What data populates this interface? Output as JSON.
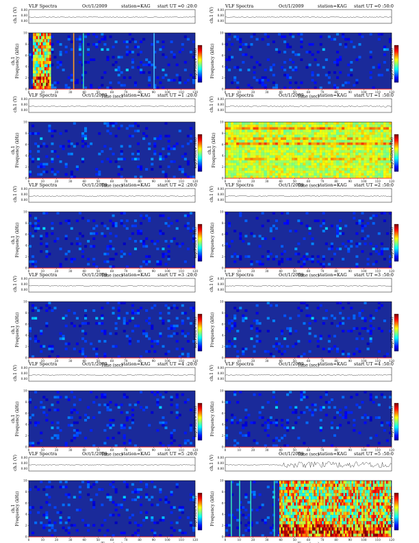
{
  "chart_data": [
    {
      "type": "heatmap",
      "title": "VLF Spectra",
      "date": "Oct/1/2009",
      "station": "station=KAG",
      "start": "start  UT  =0 :20:0",
      "ylabel_top": "ch.1 (V)",
      "ylabel_main": "ch.1\nFrequency  (kHz)",
      "xlabel": "Time  (sec)",
      "colorbar_label": "log(PSD)(V²/Hz)",
      "xlim": [
        0,
        120
      ],
      "ylim": [
        0,
        10
      ],
      "yticks_top": [
        "0.00",
        "0.00",
        "0.00"
      ],
      "xticks": [
        0,
        10,
        20,
        30,
        40,
        50,
        60,
        70,
        80,
        90,
        100,
        110,
        120
      ],
      "yticks": [
        0,
        2,
        4,
        6,
        8,
        10
      ],
      "level": "low",
      "events": [
        {
          "type": "broadband",
          "x_start": 3,
          "x_end": 16
        },
        {
          "type": "line",
          "x": 32
        },
        {
          "type": "line",
          "x": 39
        },
        {
          "type": "line",
          "x": 90
        }
      ]
    },
    {
      "type": "heatmap",
      "title": "VLF Spectra",
      "date": "Oct/1/2009",
      "station": "station=KAG",
      "start": "start  UT  =0 :50:0",
      "ylabel_top": "ch.1 (V)",
      "ylabel_main": "Frequency  (kHz)",
      "xlabel": "Time  (sec)",
      "colorbar_label": "log(PSD)(V²/Hz)",
      "xlim": [
        0,
        120
      ],
      "ylim": [
        0,
        10
      ],
      "yticks_top": [
        "0.00",
        "0.00",
        "0.00"
      ],
      "xticks": [
        0,
        10,
        20,
        30,
        40,
        50,
        60,
        70,
        80,
        90,
        100,
        110,
        120
      ],
      "yticks": [
        0,
        2,
        4,
        6,
        8,
        10
      ],
      "level": "low",
      "events": []
    },
    {
      "type": "heatmap",
      "title": "VLF Spectra",
      "date": "Oct/1/2009",
      "station": "station=KAG",
      "start": "start  UT  =1 :20:0",
      "ylabel_top": "ch.1 (V)",
      "ylabel_main": "ch.1\nFrequency  (kHz)",
      "xlabel": "Time  (sec)",
      "colorbar_label": "log(PSD)(V²/Hz)",
      "xlim": [
        0,
        120
      ],
      "ylim": [
        0,
        10
      ],
      "yticks_top": [
        "0.00",
        "0.00",
        "0.00"
      ],
      "xticks": [
        0,
        10,
        20,
        30,
        40,
        50,
        60,
        70,
        80,
        90,
        100,
        110,
        120
      ],
      "yticks": [
        0,
        2,
        4,
        6,
        8,
        10
      ],
      "level": "low",
      "events": []
    },
    {
      "type": "heatmap",
      "title": "VLF Spectra",
      "date": "Oct/1/2009",
      "station": "station=KAG",
      "start": "start  UT  =1 :50:0",
      "ylabel_top": "ch.1 (V)",
      "ylabel_main": "ch.1\nFrequency  (kHz)",
      "xlabel": "Time  (sec)",
      "colorbar_label": "log(PSD)(V²/Hz)",
      "xlim": [
        0,
        120
      ],
      "ylim": [
        0,
        10
      ],
      "yticks_top": [
        "0.00",
        "0.00",
        "0.00"
      ],
      "xticks": [
        0,
        10,
        20,
        30,
        40,
        50,
        60,
        70,
        80,
        90,
        100,
        110,
        120
      ],
      "yticks": [
        0,
        2,
        4,
        6,
        8,
        10
      ],
      "level": "high",
      "events": []
    },
    {
      "type": "heatmap",
      "title": "VLF Spectra",
      "date": "Oct/1/2009",
      "station": "station=KAG",
      "start": "start  UT  =2 :20:0",
      "ylabel_top": "ch.1 (V)",
      "ylabel_main": "ch.1\nFrequency  (kHz)",
      "xlabel": "Time  (sec)",
      "colorbar_label": "log(PSD)(V²/Hz)",
      "xlim": [
        0,
        120
      ],
      "ylim": [
        0,
        10
      ],
      "yticks_top": [
        "0.00",
        "0.00",
        "0.00"
      ],
      "xticks": [
        0,
        10,
        20,
        30,
        40,
        50,
        60,
        70,
        80,
        90,
        100,
        110,
        120
      ],
      "yticks": [
        0,
        2,
        4,
        6,
        8,
        10
      ],
      "level": "low",
      "events": []
    },
    {
      "type": "heatmap",
      "title": "VLF Spectra",
      "date": "Oct/1/2009",
      "station": "station=KAG",
      "start": "start  UT  =2 :50:0",
      "ylabel_top": "ch.1 (V)",
      "ylabel_main": "Frequency  (kHz)",
      "xlabel": "Time  (sec)",
      "colorbar_label": "log(PSD)(V²/Hz)",
      "xlim": [
        0,
        120
      ],
      "ylim": [
        0,
        10
      ],
      "yticks_top": [
        "0.00",
        "0.00",
        "0.00"
      ],
      "xticks": [
        0,
        10,
        20,
        30,
        40,
        50,
        60,
        70,
        80,
        90,
        100,
        110,
        120
      ],
      "yticks": [
        0,
        2,
        4,
        6,
        8,
        10
      ],
      "level": "low",
      "events": []
    },
    {
      "type": "heatmap",
      "title": "VLF Spectra",
      "date": "Oct/1/2009",
      "station": "station=KAG",
      "start": "start  UT  =3 :20:0",
      "ylabel_top": "ch.1 (V)",
      "ylabel_main": "ch.1\nFrequency  (kHz)",
      "xlabel": "Time  (sec)",
      "colorbar_label": "log(PSD)(V²/Hz)",
      "xlim": [
        0,
        120
      ],
      "ylim": [
        0,
        10
      ],
      "yticks_top": [
        "0.00",
        "0.00",
        "0.00"
      ],
      "xticks": [
        0,
        10,
        20,
        30,
        40,
        50,
        60,
        70,
        80,
        90,
        100,
        110,
        120
      ],
      "yticks": [
        0,
        2,
        4,
        6,
        8,
        10
      ],
      "level": "low",
      "events": []
    },
    {
      "type": "heatmap",
      "title": "VLF Spectra",
      "date": "Oct/1/2009",
      "station": "station=KAG",
      "start": "start  UT  =3 :50:0",
      "ylabel_top": "ch.1 (V)",
      "ylabel_main": "Frequency  (kHz)",
      "xlabel": "Time  (sec)",
      "colorbar_label": "log(PSD)(V²/Hz)",
      "xlim": [
        0,
        120
      ],
      "ylim": [
        0,
        10
      ],
      "yticks_top": [
        "0.00",
        "0.00",
        "0.00"
      ],
      "xticks": [
        0,
        10,
        20,
        30,
        40,
        50,
        60,
        70,
        80,
        90,
        100,
        110,
        120
      ],
      "yticks": [
        0,
        2,
        4,
        6,
        8,
        10
      ],
      "level": "low",
      "events": []
    },
    {
      "type": "heatmap",
      "title": "VLF Spectra",
      "date": "Oct/1/2009",
      "station": "station=KAG",
      "start": "start  UT  =4 :20:0",
      "ylabel_top": "ch.1 (V)",
      "ylabel_main": "ch.1\nFrequency  (kHz)",
      "xlabel": "Time  (sec)",
      "colorbar_label": "log(PSD)(V²/Hz)",
      "xlim": [
        0,
        120
      ],
      "ylim": [
        0,
        10
      ],
      "yticks_top": [
        "0.00",
        "0.00",
        "0.00"
      ],
      "xticks": [
        0,
        10,
        20,
        30,
        40,
        50,
        60,
        70,
        80,
        90,
        100,
        110,
        120
      ],
      "yticks": [
        0,
        2,
        4,
        6,
        8,
        10
      ],
      "level": "low",
      "events": []
    },
    {
      "type": "heatmap",
      "title": "VLF Spectra",
      "date": "Oct/1/2009",
      "station": "station=KAG",
      "start": "start  UT  =4 :50:0",
      "ylabel_top": "ch.1 (V)",
      "ylabel_main": "Frequency  (kHz)",
      "xlabel": "Time  (sec)",
      "colorbar_label": "log(PSD)(V²/Hz)",
      "xlim": [
        0,
        120
      ],
      "ylim": [
        0,
        10
      ],
      "yticks_top": [
        "0.00",
        "0.00",
        "0.00"
      ],
      "xticks": [
        0,
        10,
        20,
        30,
        40,
        50,
        60,
        70,
        80,
        90,
        100,
        110,
        120
      ],
      "yticks": [
        0,
        2,
        4,
        6,
        8,
        10
      ],
      "level": "low",
      "events": []
    },
    {
      "type": "heatmap",
      "title": "VLF Spectra",
      "date": "Oct/1/2009",
      "station": "station=KAG",
      "start": "start  UT  =5 :20:0",
      "ylabel_top": "ch.1 (V)",
      "ylabel_main": "ch.1\nFrequency  (kHz)",
      "xlabel": "Time  (sec)",
      "colorbar_label": "log(PSD)(V²/Hz)",
      "xlim": [
        0,
        120
      ],
      "ylim": [
        0,
        10
      ],
      "yticks_top": [
        "0.00",
        "0.00",
        "0.00"
      ],
      "xticks": [
        0,
        10,
        20,
        30,
        40,
        50,
        60,
        70,
        80,
        90,
        100,
        110,
        120
      ],
      "yticks": [
        0,
        2,
        4,
        6,
        8,
        10
      ],
      "level": "low",
      "events": []
    },
    {
      "type": "heatmap",
      "title": "",
      "date": "Oct/1/2009",
      "station": "station=KAG",
      "start": "start  UT  =5 :50:0",
      "ylabel_top": "ch.1 (V)",
      "ylabel_main": "Frequency  (kHz)",
      "xlabel": "Time  (sec)",
      "colorbar_label": "log(PSD)(V²/Hz)",
      "xlim": [
        0,
        120
      ],
      "ylim": [
        0,
        10
      ],
      "yticks_top": [
        "0.00",
        "0.00",
        "0.00"
      ],
      "xticks": [
        0,
        10,
        20,
        30,
        40,
        50,
        60,
        70,
        80,
        90,
        100,
        110,
        120
      ],
      "yticks": [
        0,
        2,
        4,
        6,
        8,
        10
      ],
      "level": "low",
      "events": [
        {
          "type": "line",
          "x": 4
        },
        {
          "type": "line",
          "x": 10
        },
        {
          "type": "line",
          "x": 18
        },
        {
          "type": "line",
          "x": 35
        },
        {
          "type": "broadband",
          "x_start": 39,
          "x_end": 120
        }
      ]
    }
  ],
  "colors": {
    "background": "#1a2a9a",
    "low_noise": "#2b3fbf",
    "high_noise": "#1ad6b0",
    "accent": "#ff2a1a"
  }
}
